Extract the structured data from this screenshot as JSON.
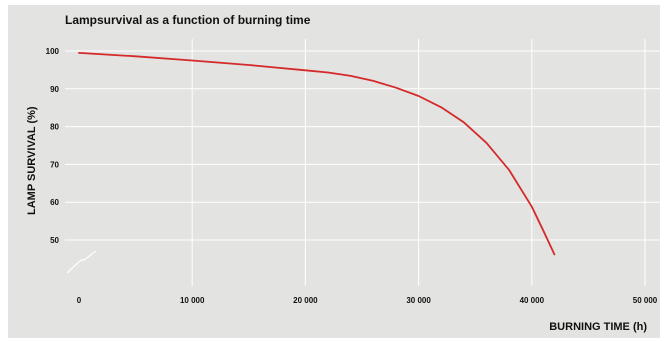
{
  "chart_data": {
    "type": "line",
    "title": "Lampsurvival as a function of burning time",
    "xlabel": "BURNING TIME (h)",
    "ylabel": "LAMP SURVIVAL (%)",
    "x_ticks": [
      0,
      10000,
      20000,
      30000,
      40000,
      50000
    ],
    "x_tick_labels": [
      "0",
      "10 000",
      "20 000",
      "30 000",
      "40 000",
      "50 000"
    ],
    "y_ticks": [
      50,
      60,
      70,
      80,
      90,
      100
    ],
    "y_tick_labels": [
      "50",
      "60",
      "70",
      "80",
      "90",
      "100"
    ],
    "xlim": [
      0,
      50000
    ],
    "ylim": [
      50,
      100
    ],
    "y_axis_break": true,
    "grid": true,
    "series": [
      {
        "color": "#d42a2a",
        "x": [
          0,
          5000,
          10000,
          15000,
          20000,
          22000,
          24000,
          26000,
          28000,
          30000,
          32000,
          34000,
          36000,
          38000,
          40000,
          41000,
          42000
        ],
        "y": [
          99.5,
          98.6,
          97.5,
          96.3,
          94.9,
          94.3,
          93.4,
          92.1,
          90.3,
          88.1,
          85.1,
          81.1,
          75.7,
          68.5,
          58.8,
          52.6,
          46.2
        ]
      }
    ]
  }
}
